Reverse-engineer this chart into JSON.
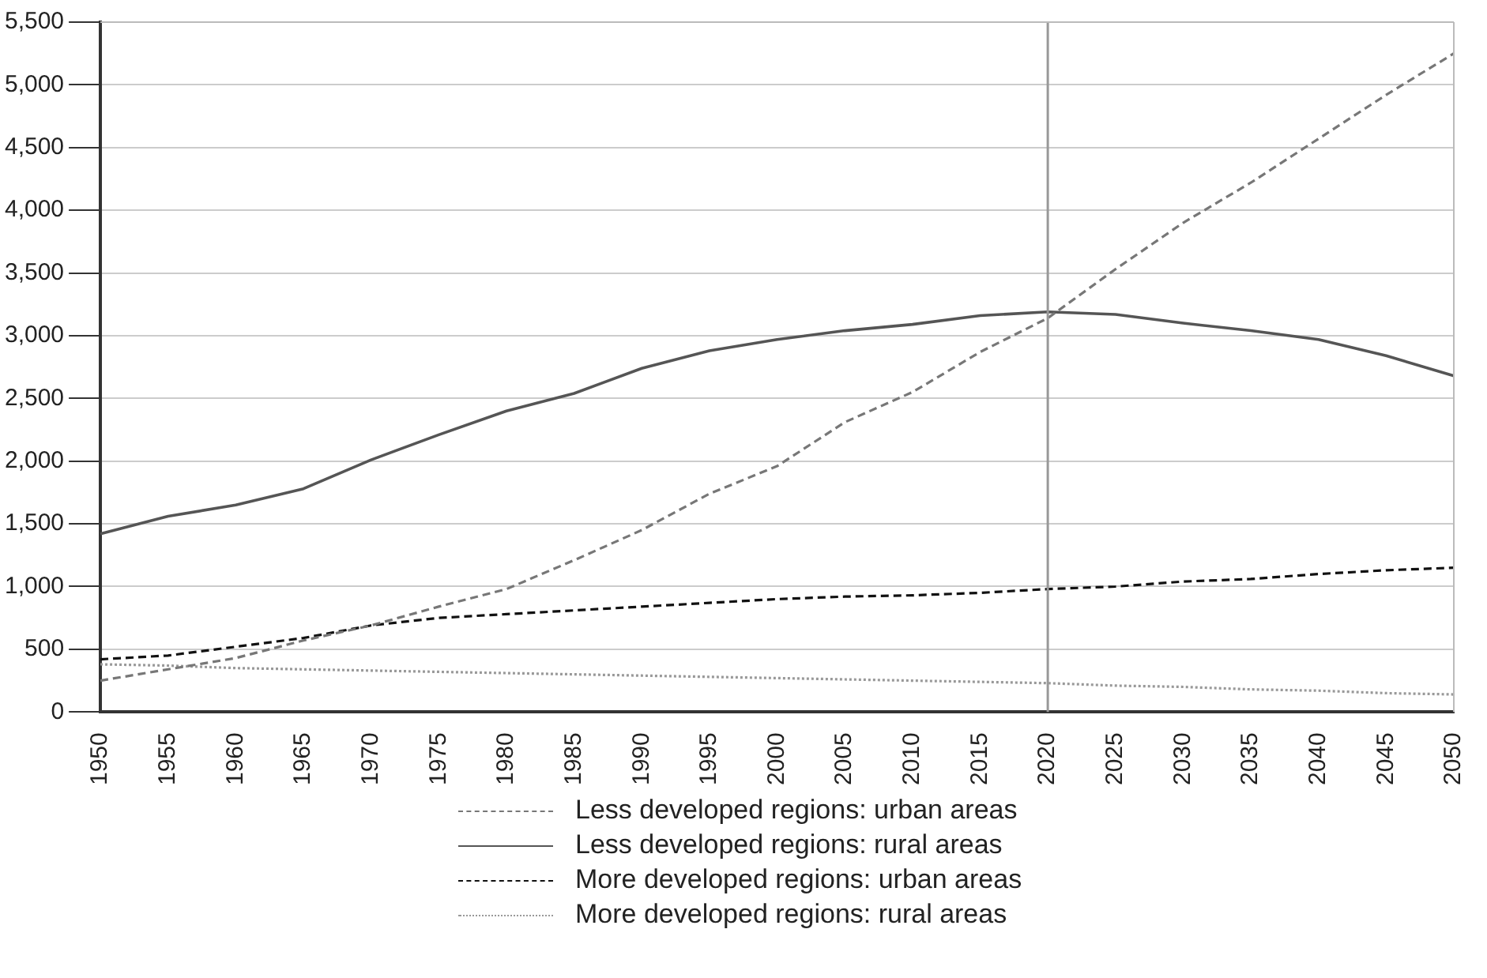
{
  "chart_data": {
    "type": "line",
    "categories": [
      "1950",
      "1955",
      "1960",
      "1965",
      "1970",
      "1975",
      "1980",
      "1985",
      "1990",
      "1995",
      "2000",
      "2005",
      "2010",
      "2015",
      "2020",
      "2025",
      "2030",
      "2035",
      "2040",
      "2045",
      "2050"
    ],
    "series": [
      {
        "name": "Less developed regions: urban areas",
        "color": "#777777",
        "line_style": "dashed",
        "values": [
          250,
          340,
          430,
          570,
          690,
          840,
          980,
          1210,
          1450,
          1740,
          1960,
          2310,
          2550,
          2870,
          3140,
          3530,
          3900,
          4220,
          4570,
          4920,
          5250
        ]
      },
      {
        "name": "Less developed regions: rural areas",
        "color": "#555555",
        "line_style": "solid",
        "values": [
          1420,
          1560,
          1650,
          1780,
          2010,
          2210,
          2400,
          2540,
          2740,
          2880,
          2970,
          3040,
          3090,
          3160,
          3190,
          3170,
          3100,
          3040,
          2970,
          2840,
          2680
        ]
      },
      {
        "name": "More developed regions: urban areas",
        "color": "#111111",
        "line_style": "dashed",
        "values": [
          420,
          450,
          520,
          590,
          690,
          750,
          780,
          810,
          840,
          870,
          900,
          920,
          930,
          950,
          980,
          1000,
          1040,
          1060,
          1100,
          1130,
          1150
        ]
      },
      {
        "name": "More developed regions: rural areas",
        "color": "#999999",
        "line_style": "dotted",
        "values": [
          380,
          370,
          350,
          340,
          330,
          320,
          310,
          300,
          290,
          280,
          270,
          260,
          250,
          240,
          230,
          210,
          200,
          180,
          170,
          150,
          140
        ]
      }
    ],
    "ylim": [
      0,
      5500
    ],
    "yticks": [
      0,
      500,
      {
        "value": 1000,
        "label": "1,000"
      },
      {
        "value": 1500,
        "label": "1,500"
      },
      {
        "value": 2000,
        "label": "2,000"
      },
      {
        "value": 2500,
        "label": "2,500"
      },
      {
        "value": 3000,
        "label": "3,000"
      },
      {
        "value": 3500,
        "label": "3,500"
      },
      {
        "value": 4000,
        "label": "4,000"
      },
      {
        "value": 4500,
        "label": "4,500"
      },
      {
        "value": 5000,
        "label": "5,000"
      },
      {
        "value": 5500,
        "label": "5,500"
      }
    ],
    "grid": "y",
    "legend": "bottom",
    "marker": "none",
    "ref_lines": [
      {
        "axis": "x",
        "value": "2020",
        "color": "#999999"
      }
    ]
  }
}
